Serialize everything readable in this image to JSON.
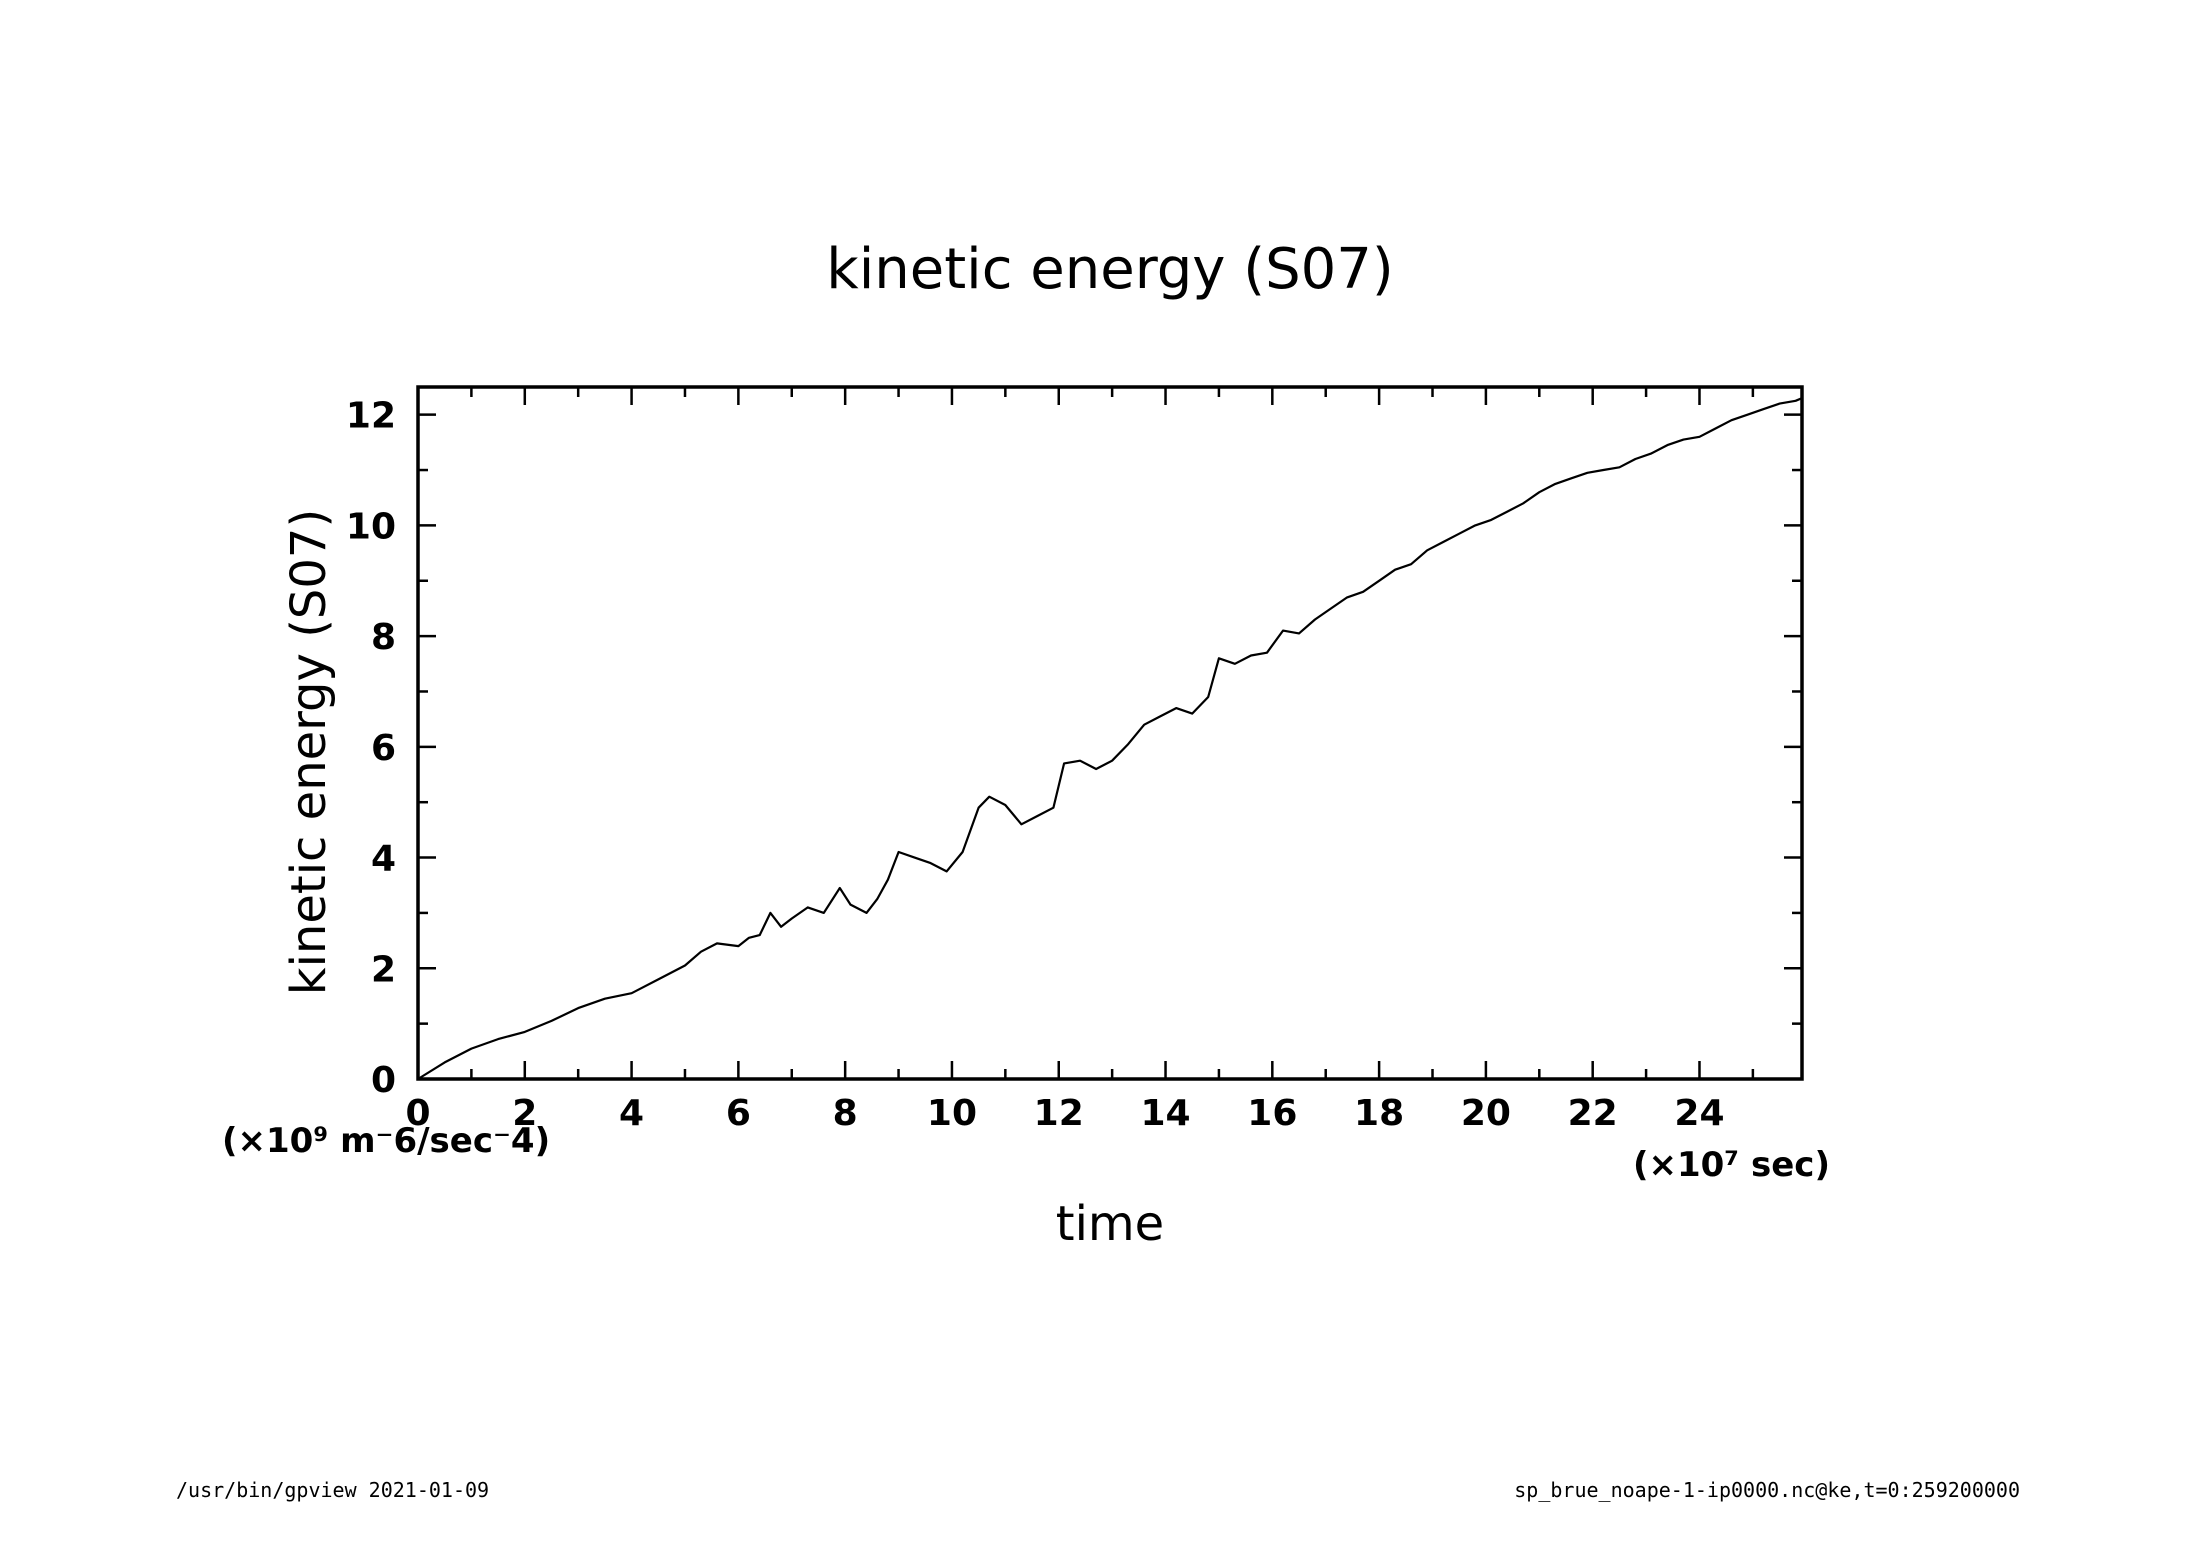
{
  "footer": {
    "left": "/usr/bin/gpview  2021-01-09",
    "right": "sp_brue_noape-1-ip0000.nc@ke,t=0:259200000"
  },
  "chart_data": {
    "type": "line",
    "title": "kinetic energy (S07)",
    "xlabel": "time",
    "ylabel": "kinetic energy (S07)",
    "x_unit": "(×10⁷ sec)",
    "y_unit": "(×10⁹ m⁻6/sec⁻4)",
    "xlim": [
      0,
      25.92
    ],
    "ylim": [
      0,
      12.5
    ],
    "x_ticks": [
      0,
      2,
      4,
      6,
      8,
      10,
      12,
      14,
      16,
      18,
      20,
      22,
      24
    ],
    "x_tick_labels": [
      "0",
      "2",
      "4",
      "6",
      "8",
      "10",
      "12",
      "14",
      "16",
      "18",
      "20",
      "22",
      "24"
    ],
    "y_ticks": [
      0,
      2,
      4,
      6,
      8,
      10,
      12
    ],
    "y_tick_labels": [
      "0",
      "2",
      "4",
      "6",
      "8",
      "10",
      "12"
    ],
    "grid": false,
    "series": [
      {
        "x": [
          0,
          0.5,
          1,
          1.5,
          2,
          2.5,
          3,
          3.5,
          4,
          4.5,
          5,
          5.3,
          5.6,
          6,
          6.2,
          6.4,
          6.6,
          6.8,
          7,
          7.3,
          7.6,
          7.9,
          8.1,
          8.4,
          8.6,
          8.8,
          9,
          9.3,
          9.6,
          9.9,
          10.2,
          10.5,
          10.7,
          11,
          11.3,
          11.6,
          11.9,
          12.1,
          12.4,
          12.7,
          13,
          13.3,
          13.6,
          13.9,
          14.2,
          14.5,
          14.8,
          15,
          15.3,
          15.6,
          15.9,
          16.2,
          16.5,
          16.8,
          17.1,
          17.4,
          17.7,
          18,
          18.3,
          18.6,
          18.9,
          19.2,
          19.5,
          19.8,
          20.1,
          20.4,
          20.7,
          21,
          21.3,
          21.6,
          21.9,
          22.2,
          22.5,
          22.8,
          23.1,
          23.4,
          23.7,
          24,
          24.3,
          24.6,
          24.9,
          25.2,
          25.5,
          25.8,
          25.92
        ],
        "y": [
          0,
          0.3,
          0.55,
          0.72,
          0.85,
          1.05,
          1.28,
          1.45,
          1.55,
          1.8,
          2.05,
          2.3,
          2.45,
          2.4,
          2.55,
          2.6,
          3.0,
          2.75,
          2.9,
          3.1,
          3.0,
          3.45,
          3.15,
          3.0,
          3.25,
          3.6,
          4.1,
          4.0,
          3.9,
          3.75,
          4.1,
          4.9,
          5.1,
          4.95,
          4.6,
          4.75,
          4.9,
          5.7,
          5.75,
          5.6,
          5.75,
          6.05,
          6.4,
          6.55,
          6.7,
          6.6,
          6.9,
          7.6,
          7.5,
          7.65,
          7.7,
          8.1,
          8.05,
          8.3,
          8.5,
          8.7,
          8.8,
          9.0,
          9.2,
          9.3,
          9.55,
          9.7,
          9.85,
          10.0,
          10.1,
          10.25,
          10.4,
          10.6,
          10.75,
          10.85,
          10.95,
          11.0,
          11.05,
          11.2,
          11.3,
          11.45,
          11.55,
          11.6,
          11.75,
          11.9,
          12.0,
          12.1,
          12.2,
          12.25,
          12.3
        ]
      }
    ]
  }
}
